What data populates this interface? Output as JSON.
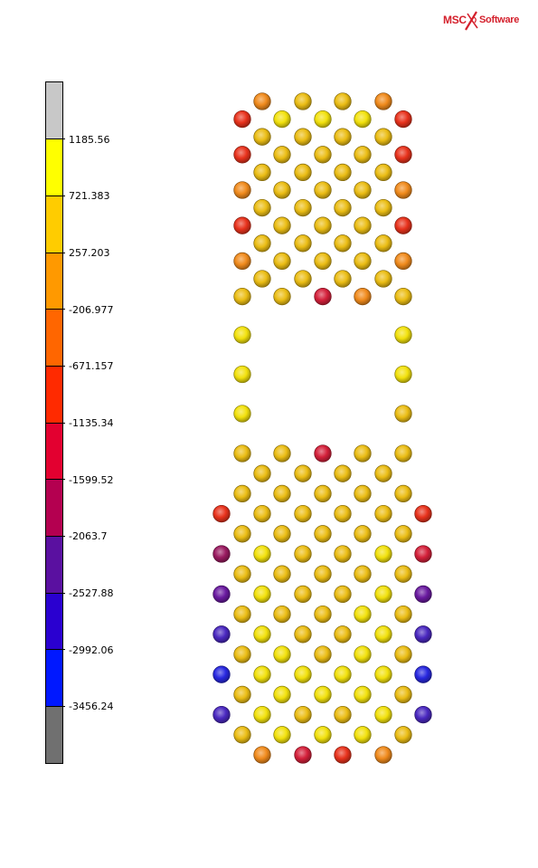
{
  "logo": {
    "brand": "MSC",
    "name": "Software",
    "color": "#d4202c"
  },
  "legend": {
    "colors": [
      "#c8c8c8",
      "#ffff00",
      "#ffcc00",
      "#ff9900",
      "#ff6600",
      "#ff2a00",
      "#e30030",
      "#b40050",
      "#5a10a0",
      "#2a00d0",
      "#0018ff",
      "#707070"
    ],
    "labels": [
      "1185.56",
      "721.383",
      "257.203",
      "-206.977",
      "-671.157",
      "-1135.34",
      "-1599.52",
      "-2063.7",
      "-2527.88",
      "-2992.06",
      "-3456.24"
    ]
  },
  "nodes": {
    "palette": {
      "Y": "#f2e10c",
      "G": "#ebbd14",
      "O": "#f08a1c",
      "R": "#e8321c",
      "D": "#d4203a",
      "P": "#9a1a60",
      "V": "#6a1aa0",
      "I": "#4a28c0",
      "B": "#2828e0"
    },
    "top_rows": [
      [
        "",
        "O",
        "G",
        "G",
        "O",
        ""
      ],
      [
        "R",
        "Y",
        "Y",
        "Y",
        "R"
      ],
      [
        "",
        "G",
        "G",
        "G",
        "G",
        ""
      ],
      [
        "R",
        "G",
        "G",
        "G",
        "R"
      ],
      [
        "",
        "G",
        "G",
        "G",
        "G",
        ""
      ],
      [
        "O",
        "G",
        "G",
        "G",
        "O"
      ],
      [
        "",
        "G",
        "G",
        "G",
        "G",
        ""
      ],
      [
        "R",
        "G",
        "G",
        "G",
        "R"
      ],
      [
        "",
        "G",
        "G",
        "G",
        "G",
        ""
      ],
      [
        "O",
        "G",
        "G",
        "G",
        "O"
      ],
      [
        "",
        "G",
        "G",
        "G",
        "G",
        ""
      ],
      [
        "G",
        "G",
        "D",
        "O",
        "G"
      ]
    ],
    "side_rows": [
      [
        "Y",
        "Y"
      ],
      [
        "Y",
        "Y"
      ],
      [
        "Y",
        "G"
      ]
    ],
    "bottom_rows": [
      [
        "G",
        "G",
        "D",
        "G",
        "G"
      ],
      [
        "",
        "G",
        "G",
        "G",
        "G",
        ""
      ],
      [
        "G",
        "G",
        "G",
        "G",
        "G"
      ],
      [
        "R",
        "G",
        "G",
        "G",
        "G",
        "R"
      ],
      [
        "G",
        "G",
        "G",
        "G",
        "G"
      ],
      [
        "P",
        "Y",
        "G",
        "G",
        "Y",
        "D"
      ],
      [
        "G",
        "G",
        "G",
        "G",
        "G"
      ],
      [
        "V",
        "Y",
        "G",
        "G",
        "Y",
        "V"
      ],
      [
        "G",
        "G",
        "G",
        "Y",
        "G"
      ],
      [
        "I",
        "Y",
        "G",
        "G",
        "Y",
        "I"
      ],
      [
        "G",
        "Y",
        "G",
        "Y",
        "G"
      ],
      [
        "B",
        "Y",
        "Y",
        "Y",
        "Y",
        "B"
      ],
      [
        "G",
        "Y",
        "Y",
        "Y",
        "G"
      ],
      [
        "I",
        "Y",
        "G",
        "G",
        "Y",
        "I"
      ],
      [
        "G",
        "Y",
        "Y",
        "Y",
        "G"
      ],
      [
        "",
        "O",
        "D",
        "R",
        "O",
        ""
      ]
    ]
  }
}
